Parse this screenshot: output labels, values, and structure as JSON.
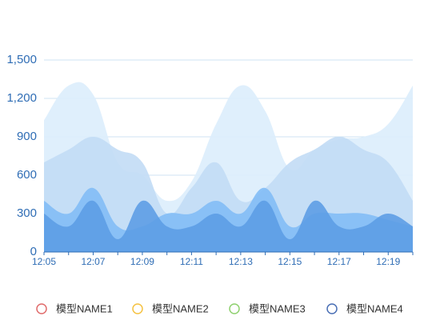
{
  "chart_data": {
    "type": "area",
    "categories": [
      "12:05",
      null,
      "12:07",
      null,
      "12:09",
      null,
      "12:11",
      null,
      "12:13",
      null,
      "12:15",
      null,
      "12:17",
      null,
      "12:19",
      null
    ],
    "series": [
      {
        "name": "模型NAME1",
        "color": "#dcedfc",
        "legend_color": "#e06c6c",
        "values": [
          1030,
          1300,
          1230,
          700,
          600,
          400,
          550,
          1000,
          1300,
          1100,
          650,
          800,
          880,
          900,
          1000,
          1300
        ]
      },
      {
        "name": "模型NAME2",
        "color": "#c2dbf5",
        "legend_color": "#f5c242",
        "values": [
          700,
          800,
          900,
          800,
          700,
          300,
          500,
          700,
          400,
          500,
          700,
          800,
          900,
          800,
          700,
          400
        ]
      },
      {
        "name": "模型NAME3",
        "color": "#82bdf6",
        "legend_color": "#8fd16f",
        "values": [
          400,
          300,
          500,
          200,
          200,
          300,
          300,
          400,
          300,
          500,
          200,
          300,
          300,
          300,
          250,
          200
        ]
      },
      {
        "name": "模型NAME4",
        "color": "#5d9de6",
        "legend_color": "#4a6fb5",
        "values": [
          300,
          200,
          400,
          100,
          400,
          200,
          200,
          300,
          200,
          400,
          100,
          400,
          200,
          200,
          300,
          200
        ]
      }
    ],
    "ylim": [
      0,
      1500
    ],
    "yticks": [
      0,
      300,
      600,
      900,
      {
        "value": 1200,
        "label": "1,200"
      },
      {
        "value": 1500,
        "label": "1,500"
      }
    ],
    "grid": true
  }
}
